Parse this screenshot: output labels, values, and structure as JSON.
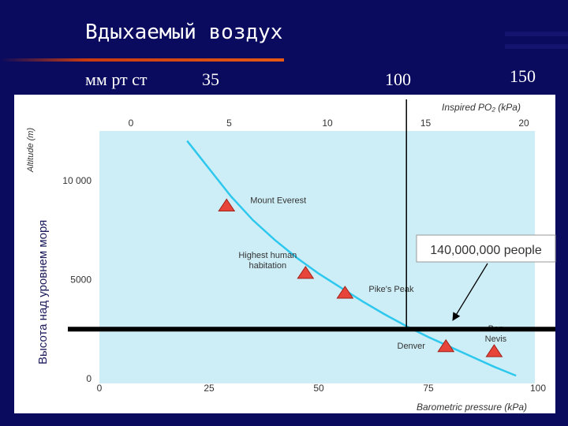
{
  "slide": {
    "title": "Вдыхаемый воздух",
    "top_row": {
      "unit": "мм рт ст",
      "v1": "35",
      "v2": "100",
      "v3": "150"
    },
    "ylabel_ru": "Высота над уровнем моря"
  },
  "chart_data": {
    "type": "line",
    "top_axis_label": "Inspired PO₂ (kPa)",
    "top_axis_ticks": [
      0,
      5,
      10,
      15,
      20
    ],
    "xlabel": "Barometric pressure (kPa)",
    "xticks": [
      0,
      25,
      50,
      75,
      100
    ],
    "xlim": [
      0,
      100
    ],
    "ylabel": "Altitude (m)",
    "yticks": [
      0,
      5000,
      10000
    ],
    "ytick_labels": [
      "0",
      "5000",
      "10 000"
    ],
    "ylim": [
      0,
      12500
    ],
    "curve": {
      "x": [
        20,
        25,
        30,
        35,
        40,
        45,
        50,
        55,
        60,
        65,
        70,
        75,
        80,
        85,
        90,
        95
      ],
      "y": [
        12000,
        10600,
        9200,
        8000,
        7000,
        6100,
        5300,
        4600,
        3900,
        3250,
        2650,
        2100,
        1600,
        1100,
        600,
        150
      ]
    },
    "points": [
      {
        "label": "Mount Everest",
        "x": 29,
        "y": 8700
      },
      {
        "label": "Highest human habitation",
        "x": 47,
        "y": 5300
      },
      {
        "label": "Pike's Peak",
        "x": 56,
        "y": 4300
      },
      {
        "label": "Denver",
        "x": 79,
        "y": 1600
      },
      {
        "label": "Ben Nevis",
        "x": 90,
        "y": 1350
      }
    ],
    "vertical_line_x": 70,
    "horizontal_line_y": 2500,
    "annotation": {
      "text": "140,000,000 people",
      "arrow_to_x": 80,
      "arrow_to_y": 2600
    }
  }
}
